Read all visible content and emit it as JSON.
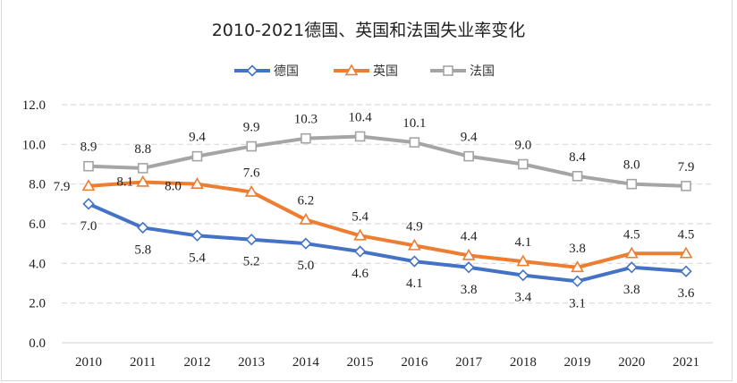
{
  "chart_data": {
    "type": "line",
    "title": "2010-2021德国、英国和法国失业率变化",
    "xlabel": "",
    "ylabel": "",
    "categories": [
      "2010",
      "2011",
      "2012",
      "2013",
      "2014",
      "2015",
      "2016",
      "2017",
      "2018",
      "2019",
      "2020",
      "2021"
    ],
    "ylim": [
      0,
      12
    ],
    "yticks": [
      "0.0",
      "2.0",
      "4.0",
      "6.0",
      "8.0",
      "10.0",
      "12.0"
    ],
    "grid": true,
    "legend_position": "top",
    "series": [
      {
        "name": "德国",
        "color": "#4472C4",
        "marker": "diamond",
        "values": [
          7.0,
          5.8,
          5.4,
          5.2,
          5.0,
          4.6,
          4.1,
          3.8,
          3.4,
          3.1,
          3.8,
          3.6
        ],
        "labels": [
          "7.0",
          "5.8",
          "5.4",
          "5.2",
          "5.0",
          "4.6",
          "4.1",
          "3.8",
          "3.4",
          "3.1",
          "3.8",
          "3.6"
        ]
      },
      {
        "name": "英国",
        "color": "#ED7D31",
        "marker": "triangle",
        "values": [
          7.9,
          8.1,
          8.0,
          7.6,
          6.2,
          5.4,
          4.9,
          4.4,
          4.1,
          3.8,
          4.5,
          4.5
        ],
        "labels": [
          "7.9",
          "8.1",
          "8.0",
          "7.6",
          "6.2",
          "5.4",
          "4.9",
          "4.4",
          "4.1",
          "3.8",
          "4.5",
          "4.5"
        ]
      },
      {
        "name": "法国",
        "color": "#A5A5A5",
        "marker": "square",
        "values": [
          8.9,
          8.8,
          9.4,
          9.9,
          10.3,
          10.4,
          10.1,
          9.4,
          9.0,
          8.4,
          8.0,
          7.9
        ],
        "labels": [
          "8.9",
          "8.8",
          "9.4",
          "9.9",
          "10.3",
          "10.4",
          "10.1",
          "9.4",
          "9.0",
          "8.4",
          "8.0",
          "7.9"
        ]
      }
    ]
  }
}
